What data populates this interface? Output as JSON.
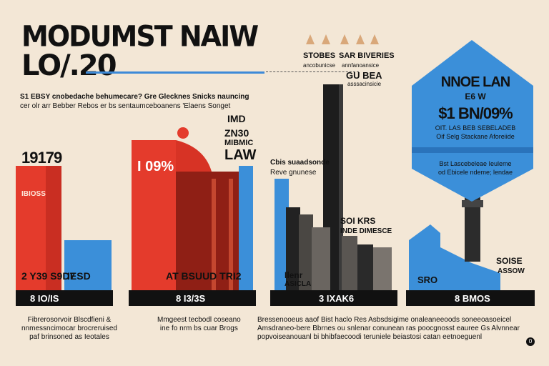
{
  "header": {
    "title_line1": "MODUMST NAIW",
    "title_line2": "LO/.20",
    "subtitle_line1": "S1 EBSY cnobedache behumecare? Gre Glecknes Snicks nauncing",
    "subtitle_line2": "cer olr arr Bebber Rebos er bs sentaumceboanens 'Elaens Songet"
  },
  "top_labels": {
    "stores": "STOBES",
    "stores_sub": "ancobunicse",
    "bmveries": "SAR BIVERIES",
    "bmveries_sub": "annfanoansice",
    "gu_bea": "GU BEA",
    "gu_bea_sub": "asssacinsicie"
  },
  "chart_data": {
    "type": "bar",
    "panels": [
      {
        "value_label": "19179",
        "inner_label": "IBIOSS",
        "bottom_label": "2 Y39 S9D7",
        "bottom_label_blue": "IESD",
        "band_label": "8 IO/IS"
      },
      {
        "value_label": "I 09%",
        "side_label_1": "IMD",
        "side_label_2": "ZN30",
        "side_label_3": "MIBMIC",
        "side_label_4": "LAW",
        "bottom_label": "AT BSUUD TRI2",
        "band_label": "8 I3/3S"
      },
      {
        "top_note_1": "Cbis suaadsonde",
        "top_note_2": "Reve gnunese",
        "mid_label_1": "SOI KRS",
        "mid_label_2": "INDE DIMESCE",
        "bottom_label_1": "Ilenr",
        "bottom_label_2": "ASICLA",
        "band_label": "3 IXAK6"
      },
      {
        "side_label_1": "SOISE",
        "side_label_2": "ASSOW",
        "bottom_label": "SRO",
        "band_label": "8 BMOS"
      }
    ]
  },
  "sign": {
    "title_line1": "NNOE LAN",
    "title_line2": "E6 W",
    "value": "$1 BN/09%",
    "note_1": "OIT. LAS BEB SEBELADEB",
    "note_2": "Oif Selg Stackane Aforeiide",
    "note_3": "Bst Lascebeleae Ieuleme",
    "note_4": "od Ebicele ndeme; lendae"
  },
  "footer": {
    "left_line1": "Fibrerosorvoir Blscdfieni &",
    "left_line2": "nnmessncimocar brocreruised",
    "left_line3": "paf brinsoned as Ieotales",
    "mid_line1": "Mmgeest tecbodl coseano",
    "mid_line2": "ine fo nrm bs cuar Brogs",
    "right_line1": "Bressenooeus aaof Bist haclo Res Asbsdsigime onaleaneeoods soneeoasoeicel",
    "right_line2": "Amsdraneo-bere Bbrnes ou snlenar conunean ras poocgnosst eauree Gs Alvnnear",
    "right_line3": "popvoiseanouanl bi bhibfaecoodi teruniele beiastosi catan eetnoeguenl",
    "page": "0"
  },
  "colors": {
    "background": "#f3e7d6",
    "red": "#e43b2c",
    "dark_red": "#8f1f15",
    "blue": "#3b8fd9",
    "black": "#111111",
    "gray": "#5a5652"
  }
}
